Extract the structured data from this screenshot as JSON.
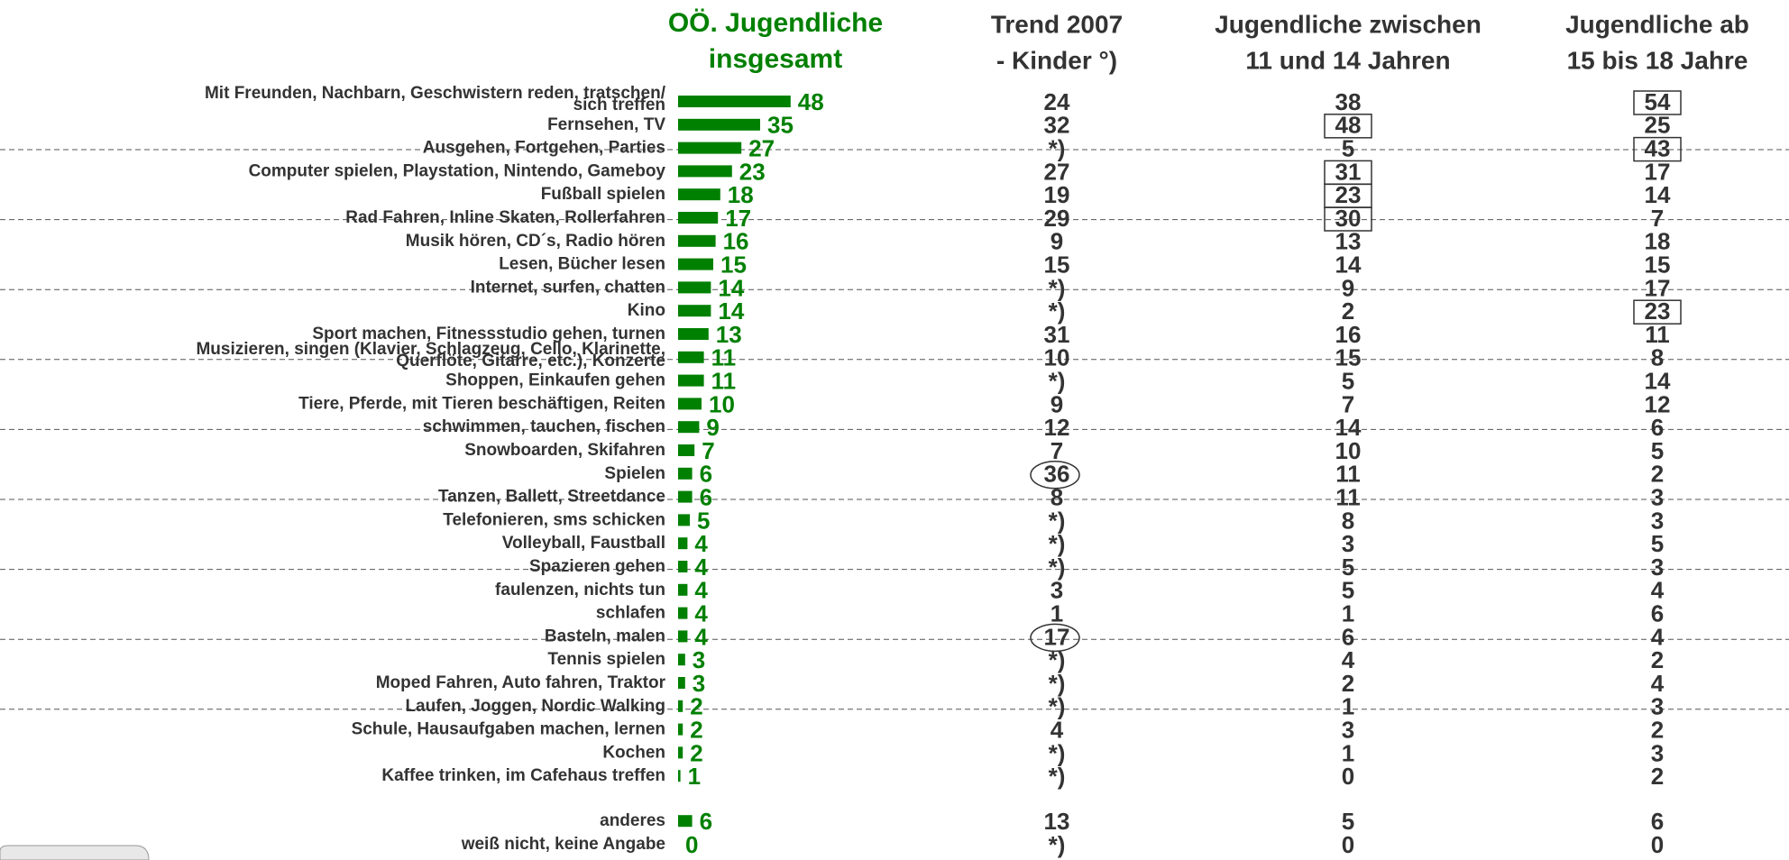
{
  "chart_data": {
    "type": "bar",
    "orientation": "horizontal",
    "color": "#008000",
    "title": [
      "OÖ. Jugendliche",
      "insgesamt"
    ],
    "categories": [
      [
        "Mit Freunden, Nachbarn, Geschwistern reden, tratschen/",
        "sich treffen"
      ],
      "Fernsehen, TV",
      "Ausgehen, Fortgehen, Parties",
      "Computer spielen, Playstation, Nintendo, Gameboy",
      "Fußball spielen",
      "Rad Fahren, Inline Skaten, Rollerfahren",
      "Musik hören, CD´s, Radio hören",
      "Lesen, Bücher lesen",
      "Internet, surfen, chatten",
      "Kino",
      "Sport machen, Fitnessstudio gehen, turnen",
      [
        "Musizieren, singen (Klavier, Schlagzeug, Cello, Klarinette,",
        "Querflöte, Gitarre, etc.), Konzerte"
      ],
      "Shoppen, Einkaufen gehen",
      "Tiere, Pferde, mit Tieren beschäftigen, Reiten",
      "schwimmen, tauchen, fischen",
      "Snowboarden, Skifahren",
      "Spielen",
      "Tanzen, Ballett, Streetdance",
      "Telefonieren, sms schicken",
      "Volleyball, Faustball",
      "Spazieren gehen",
      "faulenzen, nichts tun",
      "schlafen",
      "Basteln, malen",
      "Tennis spielen",
      "Moped Fahren, Auto fahren, Traktor",
      "Laufen, Joggen, Nordic Walking",
      "Schule, Hausaufgaben machen, lernen",
      "Kochen",
      "Kaffee trinken, im Cafehaus treffen",
      "anderes",
      "weiß nicht, keine Angabe"
    ],
    "values": [
      48,
      35,
      27,
      23,
      18,
      17,
      16,
      15,
      14,
      14,
      13,
      11,
      11,
      10,
      9,
      7,
      6,
      6,
      5,
      4,
      4,
      4,
      4,
      4,
      3,
      3,
      2,
      2,
      2,
      1,
      6,
      0
    ],
    "columns": [
      {
        "title": [
          "Trend 2007",
          "- Kinder °)"
        ],
        "values": [
          24,
          32,
          "*)",
          27,
          19,
          29,
          9,
          15,
          "*)",
          "*)",
          31,
          10,
          "*)",
          9,
          12,
          7,
          36,
          8,
          "*)",
          "*)",
          "*)",
          3,
          1,
          17,
          "*)",
          "*)",
          "*)",
          4,
          "*)",
          "*)",
          13,
          "*)"
        ],
        "circled": [
          16,
          23
        ]
      },
      {
        "title": [
          "Jugendliche zwischen",
          "11 und 14 Jahren"
        ],
        "values": [
          38,
          48,
          5,
          31,
          23,
          30,
          13,
          14,
          9,
          2,
          16,
          15,
          5,
          7,
          14,
          10,
          11,
          11,
          8,
          3,
          5,
          5,
          1,
          6,
          4,
          2,
          1,
          3,
          1,
          0,
          5,
          0
        ],
        "boxed": [
          1,
          3,
          4,
          5
        ]
      },
      {
        "title": [
          "Jugendliche ab",
          "15 bis 18 Jahre"
        ],
        "values": [
          54,
          25,
          43,
          17,
          14,
          7,
          18,
          15,
          17,
          23,
          11,
          8,
          14,
          12,
          6,
          5,
          2,
          3,
          3,
          5,
          3,
          4,
          6,
          4,
          2,
          4,
          3,
          2,
          3,
          2,
          6,
          0
        ],
        "boxed": [
          0,
          2,
          9
        ]
      }
    ]
  }
}
